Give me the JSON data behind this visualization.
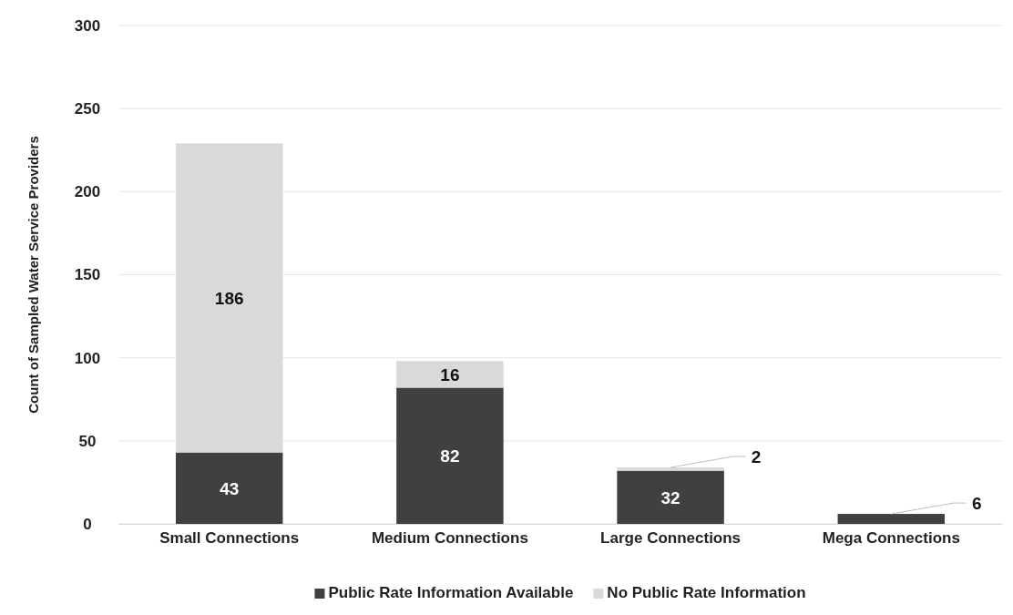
{
  "chart_data": {
    "type": "bar",
    "stacked": true,
    "ylabel": "Count of Sampled Water Service Providers",
    "categories": [
      "Small Connections",
      "Medium Connections",
      "Large Connections",
      "Mega Connections"
    ],
    "series": [
      {
        "name": "Public Rate Information Available",
        "color": "#404040",
        "values": [
          43,
          82,
          32,
          6
        ]
      },
      {
        "name": "No Public Rate Information",
        "color": "#d9d9d9",
        "values": [
          186,
          16,
          2,
          null
        ]
      }
    ],
    "ylim": [
      0,
      300
    ],
    "yticks": [
      0,
      50,
      100,
      150,
      200,
      250,
      300
    ],
    "grid": "y",
    "legend": "bottom",
    "data_labels": true
  }
}
